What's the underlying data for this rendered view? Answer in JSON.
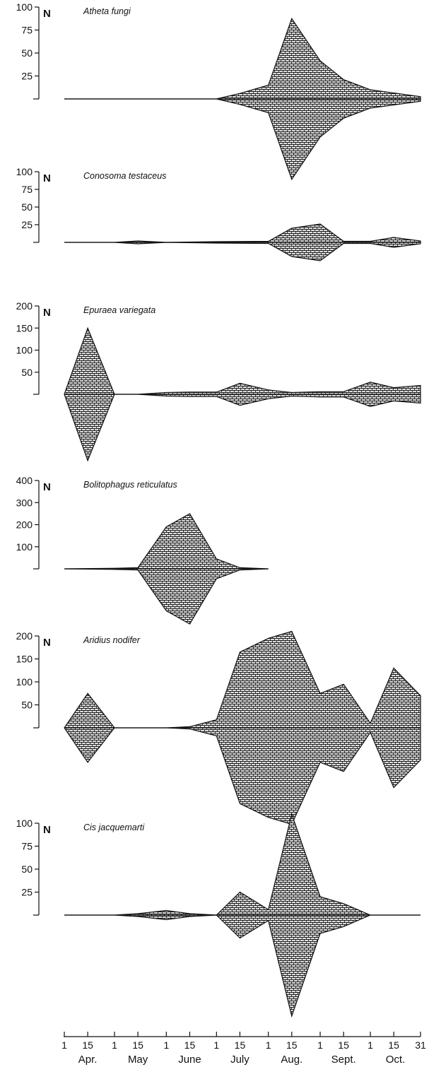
{
  "chart_data": {
    "type": "kite-diagram",
    "x_axis": {
      "tick_days": [
        1,
        15,
        1,
        15,
        1,
        15,
        1,
        15,
        1,
        15,
        1,
        15,
        1,
        15,
        31
      ],
      "months": [
        "Apr.",
        "May",
        "June",
        "July",
        "Aug.",
        "Sept.",
        "Oct."
      ]
    },
    "panels": [
      {
        "title": "Atheta fungi",
        "ylabel": "N",
        "yticks": [
          25,
          50,
          75,
          100
        ],
        "ymax": 100,
        "x": [
          "Apr 1",
          "Jun 15",
          "Jul 1",
          "Jul 15",
          "Aug 1",
          "Aug 15",
          "Sep 1",
          "Sep 15",
          "Oct 1",
          "Oct 31"
        ],
        "values": [
          0,
          0,
          0,
          12,
          30,
          175,
          83,
          42,
          20,
          5
        ]
      },
      {
        "title": "Conosoma testaceus",
        "ylabel": "N",
        "yticks": [
          25,
          50,
          75,
          100
        ],
        "ymax": 100,
        "x": [
          "Apr 1",
          "May 1",
          "May 15",
          "Jun 1",
          "Jul 1",
          "Aug 1",
          "Aug 15",
          "Sep 1",
          "Sep 15",
          "Oct 1",
          "Oct 15",
          "Oct 31"
        ],
        "values": [
          0,
          0,
          4,
          0,
          2,
          3,
          40,
          52,
          3,
          3,
          14,
          4
        ]
      },
      {
        "title": "Epuraea variegata",
        "ylabel": "N",
        "yticks": [
          50,
          100,
          150,
          200
        ],
        "ymax": 200,
        "x": [
          "Apr 1",
          "Apr 15",
          "May 1",
          "May 15",
          "Jun 1",
          "Jun 15",
          "Jul 1",
          "Jul 15",
          "Aug 1",
          "Aug 15",
          "Sep 1",
          "Sep 15",
          "Oct 1",
          "Oct 15",
          "Oct 31"
        ],
        "values": [
          0,
          300,
          0,
          0,
          8,
          10,
          10,
          50,
          20,
          8,
          12,
          12,
          55,
          30,
          40
        ]
      },
      {
        "title": "Bolitophagus reticulatus",
        "ylabel": "N",
        "yticks": [
          100,
          200,
          300,
          400
        ],
        "ymax": 400,
        "x": [
          "Apr 1",
          "May 1",
          "May 15",
          "Jun 1",
          "Jun 15",
          "Jul 1",
          "Jul 15",
          "Aug 1"
        ],
        "values": [
          0,
          5,
          10,
          380,
          500,
          90,
          10,
          0
        ]
      },
      {
        "title": "Aridius nodifer",
        "ylabel": "N",
        "yticks": [
          50,
          100,
          150,
          200
        ],
        "ymax": 200,
        "x": [
          "Apr 1",
          "Apr 15",
          "May 1",
          "Jun 1",
          "Jun 15",
          "Jul 1",
          "Jul 15",
          "Aug 1",
          "Aug 15",
          "Sep 1",
          "Sep 15",
          "Oct 1",
          "Oct 15",
          "Oct 31"
        ],
        "values": [
          0,
          150,
          0,
          0,
          5,
          35,
          330,
          390,
          420,
          150,
          190,
          20,
          260,
          140
        ]
      },
      {
        "title": "Cis jacquemarti",
        "ylabel": "N",
        "yticks": [
          25,
          50,
          75,
          100
        ],
        "ymax": 100,
        "x": [
          "Apr 1",
          "May 1",
          "May 15",
          "Jun 1",
          "Jun 15",
          "Jul 1",
          "Jul 15",
          "Aug 1",
          "Aug 15",
          "Sep 1",
          "Sep 15",
          "Oct 1",
          "Oct 31"
        ],
        "values": [
          0,
          0,
          3,
          10,
          3,
          0,
          50,
          12,
          220,
          40,
          25,
          0,
          0
        ]
      }
    ]
  }
}
